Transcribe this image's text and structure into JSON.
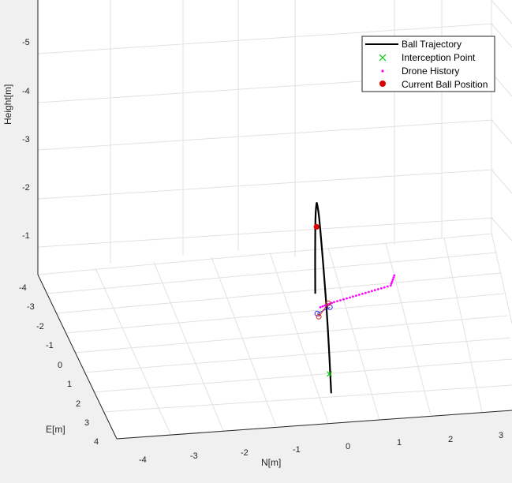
{
  "chart_data": {
    "type": "line3d",
    "title": "",
    "xlabel": "N[m]",
    "ylabel": "E[m]",
    "zlabel": "Height[m]",
    "x_ticks": [
      "-4",
      "-3",
      "-2",
      "-1",
      "0",
      "1",
      "2",
      "3"
    ],
    "y_ticks": [
      "-4",
      "-3",
      "-2",
      "-1",
      "0",
      "1",
      "2",
      "3",
      "4"
    ],
    "z_ticks": [
      "-1",
      "-2",
      "-3",
      "-4",
      "-5"
    ],
    "grid": true,
    "z_axis_reversed": true,
    "legend": {
      "placement": "top-right",
      "entries": [
        {
          "label": "Ball Trajectory",
          "marker": "line",
          "color": "#000000"
        },
        {
          "label": "Interception Point",
          "marker": "x",
          "color": "#00cc00"
        },
        {
          "label": "Drone History",
          "marker": "dot",
          "color": "#ff00ff"
        },
        {
          "label": "Current Ball Position",
          "marker": "filled-circle",
          "color": "#dd0000"
        }
      ]
    },
    "series": [
      {
        "name": "Ball Trajectory",
        "color": "#000000",
        "points": [
          {
            "N": -1.1,
            "E": 3.5,
            "H": 0.2
          },
          {
            "N": -1.05,
            "E": 2.8,
            "H": -1.0
          },
          {
            "N": -1.0,
            "E": 2.0,
            "H": -1.9
          },
          {
            "N": -0.95,
            "E": 1.3,
            "H": -2.5
          },
          {
            "N": -0.92,
            "E": 0.9,
            "H": -2.6
          },
          {
            "N": -0.88,
            "E": 0.6,
            "H": -2.5
          },
          {
            "N": -0.85,
            "E": 0.3,
            "H": -2.1
          },
          {
            "N": -0.82,
            "E": 0.1,
            "H": -1.2
          },
          {
            "N": -0.8,
            "E": 0.0,
            "H": -0.4
          }
        ]
      },
      {
        "name": "Drone History",
        "color": "#ff00ff",
        "points": [
          {
            "N": -0.7,
            "E": 0.0,
            "H": -0.1
          },
          {
            "N": -0.4,
            "E": -0.2,
            "H": -0.1
          },
          {
            "N": 0.0,
            "E": -0.4,
            "H": -0.1
          },
          {
            "N": 0.4,
            "E": -0.6,
            "H": -0.1
          },
          {
            "N": 0.8,
            "E": -0.8,
            "H": -0.1
          },
          {
            "N": 0.9,
            "E": -0.9,
            "H": -0.3
          }
        ]
      }
    ],
    "interception_point": {
      "N": -1.1,
      "E": 3.3,
      "H": -0.1
    },
    "current_ball_position": {
      "N": -0.88,
      "E": 0.6,
      "H": -2.0
    }
  },
  "colors": {
    "background": "#f0f0f0",
    "axes_background": "#ffffff",
    "grid": "#e0e0e0",
    "trajectory": "#000000",
    "interception": "#00cc00",
    "drone": "#ff00ff",
    "ball": "#dd0000",
    "drone_blue": "#2a2ad8",
    "drone_red": "#dd2020"
  }
}
